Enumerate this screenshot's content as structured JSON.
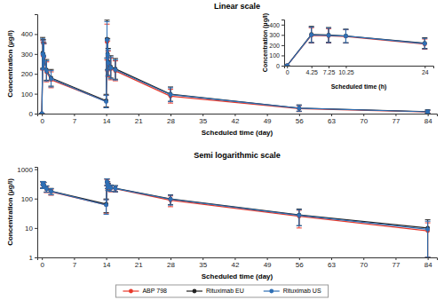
{
  "chart_data": [
    {
      "type": "line",
      "title": "Linear scale",
      "x_label": "Scheduled time (day)",
      "y_label": "Concentration (µg/l)",
      "x": [
        0,
        0.177,
        0.302,
        0.427,
        1,
        2,
        14,
        14.177,
        14.302,
        14.427,
        15,
        16,
        28,
        56,
        84
      ],
      "xlim": [
        -1,
        86
      ],
      "xticks": [
        0,
        7,
        14,
        21,
        28,
        35,
        42,
        49,
        56,
        63,
        70,
        77,
        84
      ],
      "ylim": [
        0,
        500
      ],
      "yticks": [
        0,
        100,
        200,
        300,
        400
      ],
      "marker": "circle",
      "line_style": "solid",
      "series": [
        {
          "name": "ABP 798",
          "color": "#e8392b",
          "values": [
            0,
            295,
            290,
            285,
            210,
            170,
            62,
            360,
            290,
            250,
            225,
            215,
            88,
            25,
            8
          ],
          "errors": [
            0,
            75,
            70,
            65,
            50,
            40,
            30,
            90,
            75,
            65,
            55,
            50,
            35,
            15,
            7
          ]
        },
        {
          "name": "Rituximab EU",
          "color": "#222222",
          "values": [
            0,
            305,
            300,
            290,
            220,
            180,
            65,
            375,
            300,
            260,
            235,
            225,
            98,
            28,
            10
          ],
          "errors": [
            0,
            78,
            72,
            66,
            52,
            42,
            32,
            95,
            78,
            68,
            56,
            52,
            36,
            16,
            9
          ]
        },
        {
          "name": "Rituximab US",
          "color": "#2f6fb5",
          "values": [
            0,
            300,
            295,
            288,
            215,
            175,
            60,
            370,
            295,
            255,
            230,
            220,
            95,
            27,
            9
          ],
          "errors": [
            0,
            76,
            71,
            65,
            51,
            41,
            31,
            92,
            76,
            66,
            55,
            51,
            35,
            15,
            8
          ]
        }
      ]
    },
    {
      "type": "line",
      "x_label": "Scheduled time (h)",
      "y_label": "Concentration (µg/l)",
      "x": [
        0,
        4.25,
        7.25,
        10.25,
        24
      ],
      "xlim": [
        -0.5,
        25.5
      ],
      "xticks": [
        0,
        4.25,
        7.25,
        10.25,
        24
      ],
      "ylim": [
        0,
        450
      ],
      "yticks": [
        0,
        100,
        200,
        300,
        400
      ],
      "marker": "circle",
      "line_style": "solid",
      "series": [
        {
          "name": "ABP 798",
          "color": "#e8392b",
          "values": [
            0,
            295,
            290,
            285,
            210
          ],
          "errors": [
            0,
            75,
            70,
            65,
            50
          ]
        },
        {
          "name": "Rituximab EU",
          "color": "#222222",
          "values": [
            0,
            305,
            300,
            290,
            220
          ],
          "errors": [
            0,
            78,
            72,
            66,
            52
          ]
        },
        {
          "name": "Rituximab US",
          "color": "#2f6fb5",
          "values": [
            0,
            300,
            295,
            288,
            215
          ],
          "errors": [
            0,
            76,
            71,
            65,
            51
          ]
        }
      ]
    },
    {
      "type": "line",
      "title": "Semi logarithmic scale",
      "x_label": "Scheduled time (day)",
      "y_label": "Concentration (µg/l)",
      "log": "y",
      "legend": "bottom",
      "x": [
        0.177,
        0.302,
        0.427,
        1,
        2,
        14,
        14.177,
        14.302,
        14.427,
        15,
        16,
        28,
        56,
        84
      ],
      "xlim": [
        -1,
        86
      ],
      "xticks": [
        0,
        7,
        14,
        21,
        28,
        35,
        42,
        49,
        56,
        63,
        70,
        77,
        84
      ],
      "ylim": [
        1,
        1200
      ],
      "yticks": [
        1,
        10,
        100,
        1000
      ],
      "marker": "circle",
      "line_style": "solid",
      "series": [
        {
          "name": "ABP 798",
          "color": "#e8392b",
          "values": [
            295,
            290,
            285,
            210,
            170,
            62,
            360,
            290,
            250,
            225,
            215,
            88,
            25,
            8
          ],
          "errors": [
            75,
            70,
            65,
            50,
            40,
            30,
            90,
            75,
            65,
            55,
            50,
            35,
            15,
            7
          ]
        },
        {
          "name": "Rituximab EU",
          "color": "#222222",
          "values": [
            305,
            300,
            290,
            220,
            180,
            65,
            375,
            300,
            260,
            235,
            225,
            98,
            28,
            10
          ],
          "errors": [
            78,
            72,
            66,
            52,
            42,
            32,
            95,
            78,
            68,
            56,
            52,
            36,
            16,
            9
          ]
        },
        {
          "name": "Rituximab US",
          "color": "#2f6fb5",
          "values": [
            300,
            295,
            288,
            215,
            175,
            60,
            370,
            295,
            255,
            230,
            220,
            95,
            27,
            9
          ],
          "errors": [
            76,
            71,
            65,
            51,
            41,
            31,
            92,
            76,
            66,
            55,
            51,
            35,
            15,
            8
          ]
        }
      ]
    }
  ]
}
